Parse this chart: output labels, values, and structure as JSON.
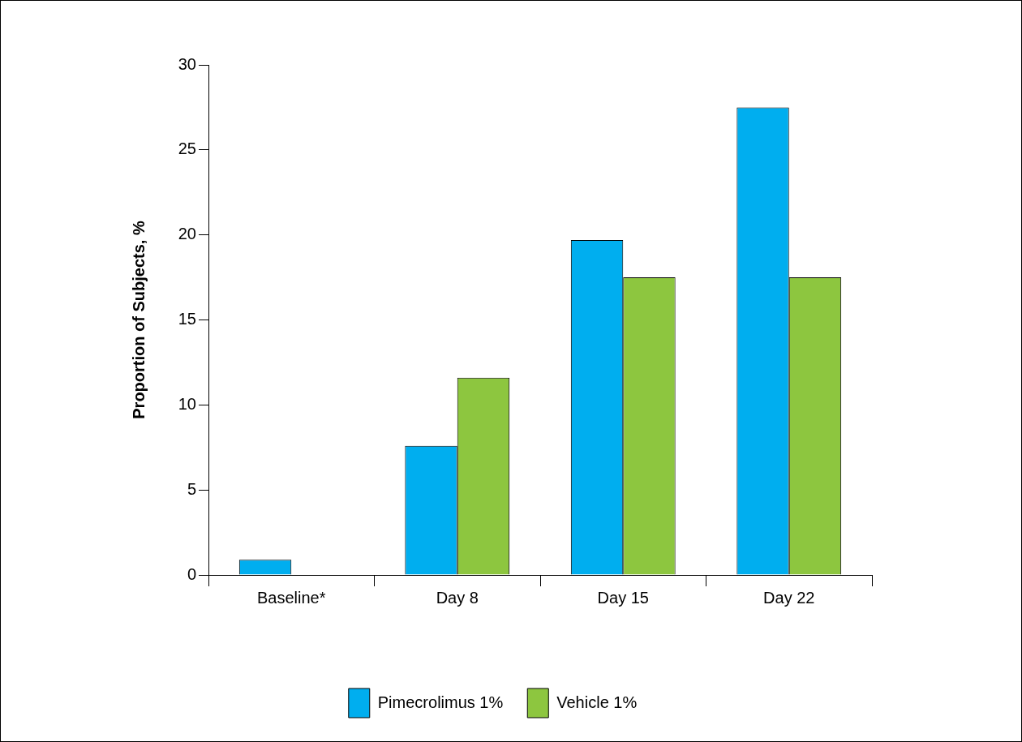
{
  "chart_data": {
    "type": "bar",
    "ylabel": "Proportion of Subjects, %",
    "categories": [
      "Baseline*",
      "Day 8",
      "Day 15",
      "Day 22"
    ],
    "series": [
      {
        "name": "Pimecrolimus 1%",
        "color": "#00aeef",
        "values": [
          0.9,
          7.6,
          19.7,
          27.5
        ]
      },
      {
        "name": "Vehicle 1%",
        "color": "#8dc63f",
        "values": [
          0,
          11.6,
          17.5,
          17.5
        ]
      }
    ],
    "ylim": [
      0,
      30
    ],
    "yticks": [
      0,
      5,
      10,
      15,
      20,
      25,
      30
    ],
    "grid": false,
    "legend": "bottom"
  }
}
